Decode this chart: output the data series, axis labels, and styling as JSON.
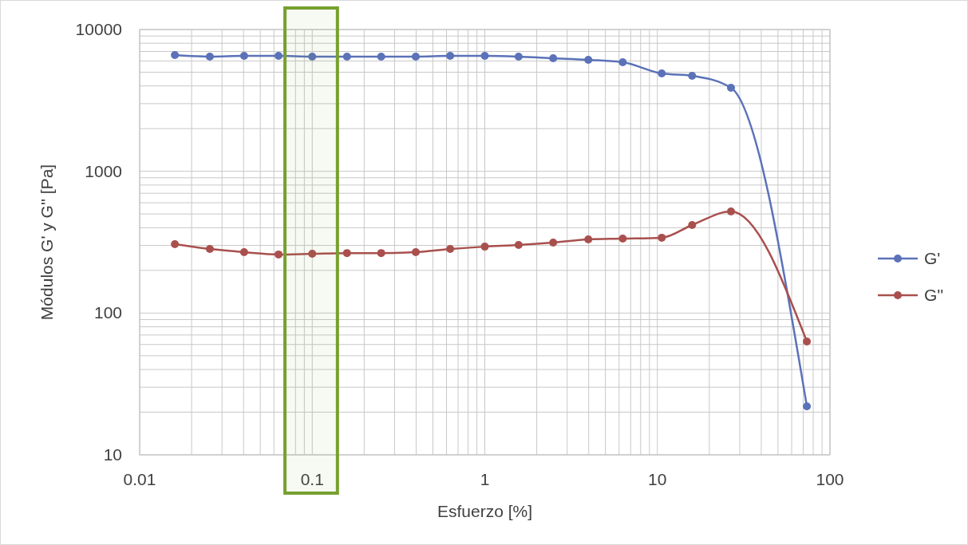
{
  "chart_data": {
    "type": "line",
    "xlabel": "Esfuerzo [%]",
    "ylabel": "Módulos G' y G'' [Pa]",
    "log": "xy",
    "grid": true,
    "legend": "right",
    "marker": "circle",
    "line_style": "solid",
    "x": [
      0.016,
      0.0255,
      0.0403,
      0.0638,
      0.1,
      0.159,
      0.251,
      0.398,
      0.63,
      1.0,
      1.57,
      2.49,
      3.98,
      6.3,
      10.6,
      15.9,
      26.7,
      73.5
    ],
    "xlim": [
      0.01,
      100
    ],
    "xticks": [
      0.01,
      0.1,
      1,
      10,
      100
    ],
    "ylim": [
      10,
      10000
    ],
    "yticks": [
      10,
      100,
      1000,
      10000
    ],
    "series": [
      {
        "name": "G'",
        "color": "#5b72b8",
        "values": [
          6600,
          6440,
          6520,
          6520,
          6440,
          6440,
          6440,
          6440,
          6520,
          6520,
          6440,
          6270,
          6110,
          5880,
          4900,
          4720,
          3880,
          22
        ]
      },
      {
        "name": "G''",
        "color": "#a9504e",
        "values": [
          306,
          283,
          269,
          259,
          262,
          265,
          265,
          269,
          283,
          294,
          302,
          314,
          331,
          335,
          340,
          418,
          521,
          63
        ]
      }
    ],
    "bands": [
      {
        "axis": "x",
        "from": 0.0695,
        "to": 0.14,
        "color": "#77a02f"
      }
    ]
  }
}
